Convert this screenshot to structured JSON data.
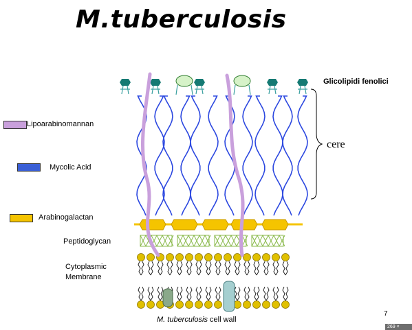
{
  "title": "M.tuberculosis",
  "labels": {
    "glycolipids": "Glicolipidi fenolici",
    "waxes": "cere",
    "page_number": "7",
    "corner_badge": "269 ×"
  },
  "legend": [
    {
      "label": "Lipoarabinomannan",
      "color": "#c9a0dc"
    },
    {
      "label": "Mycolic Acid",
      "color": "#3a5fd6"
    },
    {
      "label": "Arabinogalactan",
      "color": "#f5c400"
    }
  ],
  "layers": {
    "peptidoglycan": "Peptidoglycan",
    "membrane_line1": "Cytoplasmic",
    "membrane_line2": "Membrane"
  },
  "caption": {
    "italic": "M. tuberculosis",
    "rest": " cell wall"
  },
  "colors": {
    "glycolipid_head": "#157a73",
    "lipoarabinomannan": "#c9a0dc",
    "mycolic_acid": "#2c48e0",
    "arabinogalactan": "#f5c400",
    "peptidoglycan": "#88b848",
    "membrane_head": "#e0c000",
    "protein_teal": "#a5cfd0",
    "protein_green": "#8aa98a"
  }
}
